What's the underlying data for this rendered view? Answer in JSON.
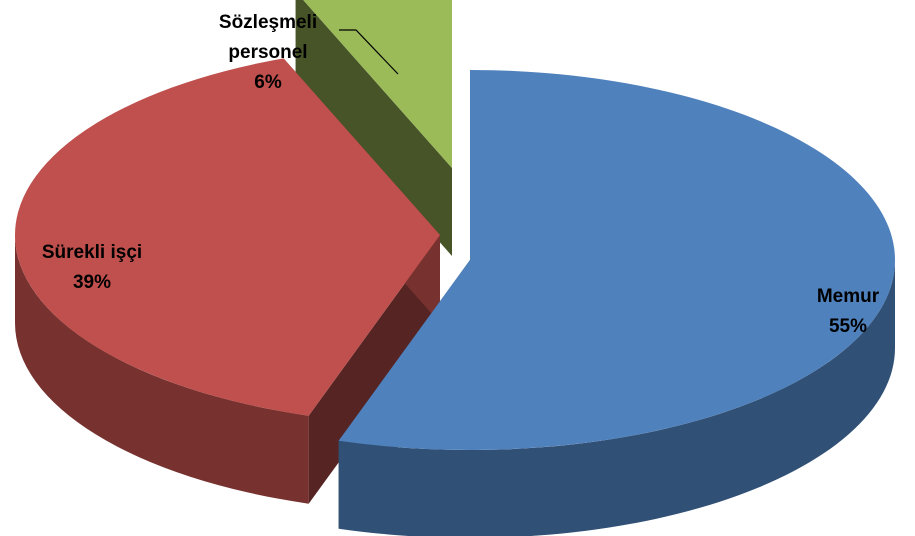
{
  "chart_data": {
    "type": "pie",
    "style": "3d-exploded",
    "title": "",
    "legend": "none",
    "slices": [
      {
        "label": "Memur",
        "value": 55,
        "value_label": "55%",
        "color": "#4F81BD"
      },
      {
        "label": "Sürekli işçi",
        "value": 39,
        "value_label": "39%",
        "color": "#C0504D"
      },
      {
        "label": "Sözleşmeli\npersonel",
        "value": 6,
        "value_label": "6%",
        "color": "#9BBB59"
      }
    ]
  }
}
